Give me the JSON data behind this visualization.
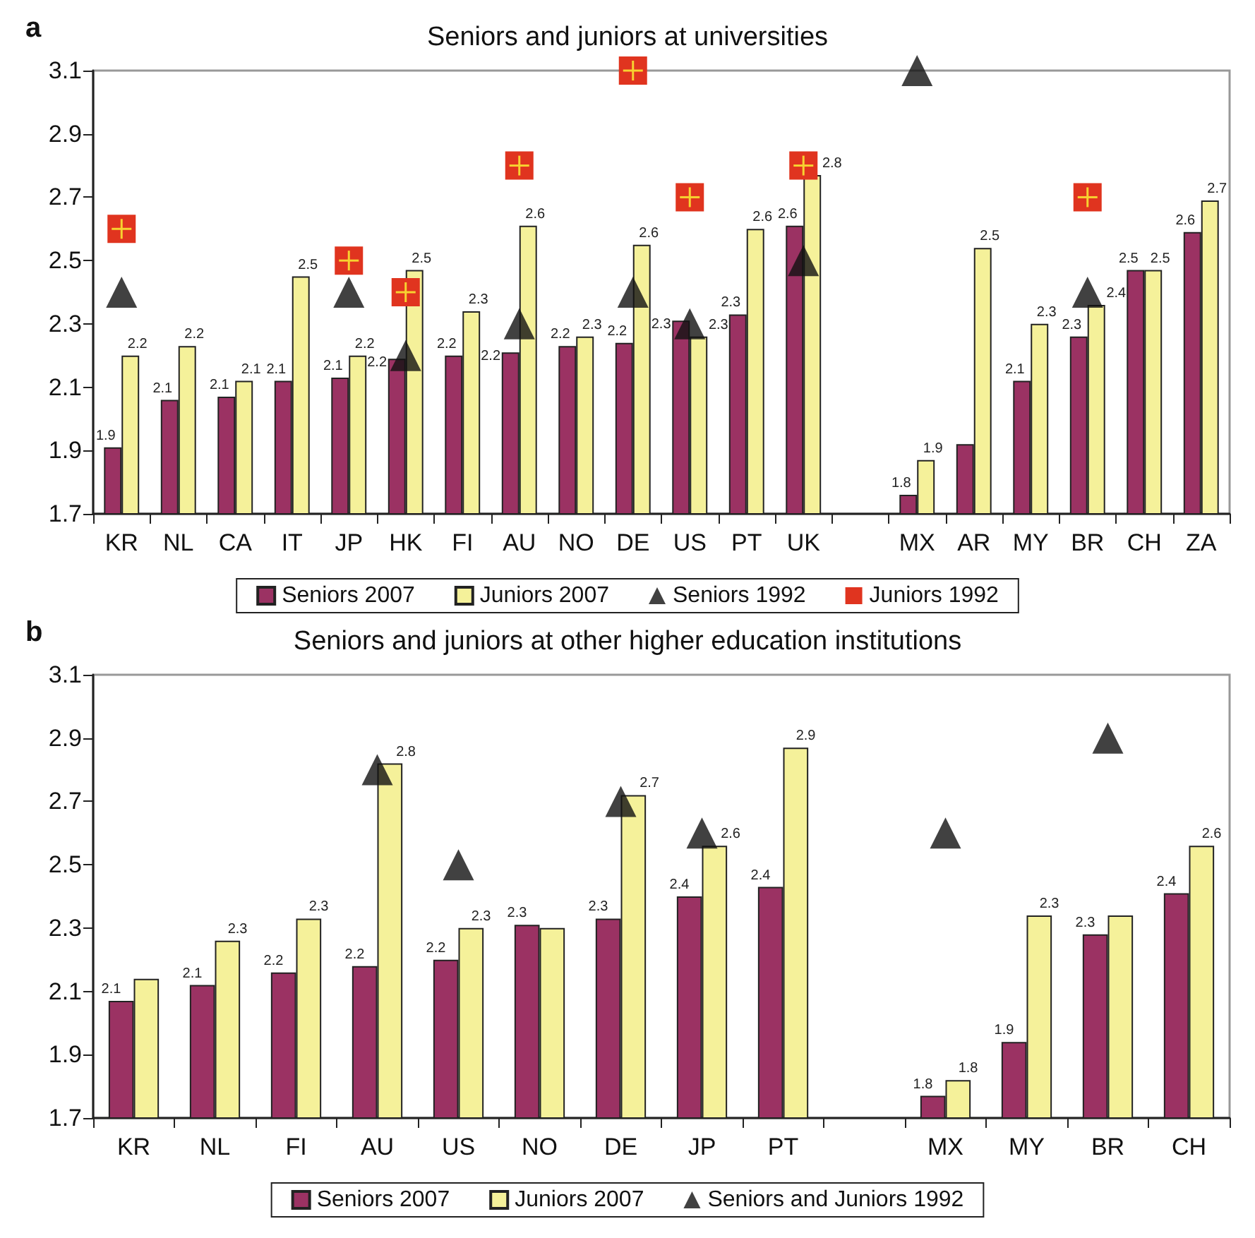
{
  "chart_data": [
    {
      "type": "bar",
      "title": "Seniors and juniors at universities",
      "annotations": [
        "a"
      ],
      "categories": [
        "KR",
        "NL",
        "CA",
        "IT",
        "JP",
        "HK",
        "FI",
        "AU",
        "NO",
        "DE",
        "US",
        "PT",
        "UK",
        null,
        "MX",
        "AR",
        "MY",
        "BR",
        "CH",
        "ZA"
      ],
      "ylim": [
        1.7,
        3.1
      ],
      "yticks": [
        1.7,
        1.9,
        2.1,
        2.3,
        2.5,
        2.7,
        2.9,
        3.1
      ],
      "legend": "bottom",
      "series": [
        {
          "name": "Seniors 2007",
          "color": "#9b3263",
          "values": [
            1.91,
            2.06,
            2.07,
            2.12,
            2.13,
            2.19,
            2.2,
            2.21,
            2.23,
            2.24,
            2.31,
            2.33,
            2.61,
            null,
            1.76,
            1.92,
            2.12,
            2.26,
            2.47,
            2.59
          ],
          "value_labels": [
            "1.9",
            "2.1",
            "2.1",
            "2.1",
            "2.1",
            "2.2",
            "2.2",
            "2.2",
            "2.2",
            "2.2",
            "2.3",
            "2.3",
            "2.6",
            null,
            "1.8",
            null,
            "2.1",
            "2.3",
            "2.5",
            "2.6"
          ]
        },
        {
          "name": "Juniors 2007",
          "color": "#f5f19a",
          "values": [
            2.2,
            2.23,
            2.12,
            2.45,
            2.2,
            2.47,
            2.34,
            2.61,
            2.26,
            2.55,
            2.26,
            2.6,
            2.77,
            null,
            1.87,
            2.54,
            2.3,
            2.36,
            2.47,
            2.69
          ],
          "value_labels": [
            "2.2",
            "2.2",
            "2.1",
            "2.5",
            "2.2",
            "2.5",
            "2.3",
            "2.6",
            "2.3",
            "2.6",
            "2.3",
            "2.6",
            "2.8",
            null,
            "1.9",
            "2.5",
            "2.3",
            "2.4",
            "2.5",
            "2.7"
          ]
        },
        {
          "name": "Seniors 1992",
          "type": "scatter",
          "marker": "triangle",
          "color": "#111111",
          "values": [
            2.4,
            null,
            null,
            null,
            2.4,
            2.2,
            null,
            2.3,
            null,
            2.4,
            2.3,
            null,
            2.5,
            null,
            3.1,
            null,
            null,
            2.4,
            null,
            null
          ]
        },
        {
          "name": "Juniors 1992",
          "type": "scatter",
          "marker": "square",
          "color": "#e0341f",
          "values": [
            2.6,
            null,
            null,
            null,
            2.5,
            2.4,
            null,
            2.8,
            null,
            3.1,
            2.7,
            null,
            2.8,
            null,
            null,
            null,
            null,
            2.7,
            null,
            null
          ]
        }
      ]
    },
    {
      "type": "bar",
      "title": "Seniors and juniors at other higher education institutions",
      "annotations": [
        "b"
      ],
      "categories": [
        "KR",
        "NL",
        "FI",
        "AU",
        "US",
        "NO",
        "DE",
        "JP",
        "PT",
        null,
        "MX",
        "MY",
        "BR",
        "CH"
      ],
      "ylim": [
        1.7,
        3.1
      ],
      "yticks": [
        1.7,
        1.9,
        2.1,
        2.3,
        2.5,
        2.7,
        2.9,
        3.1
      ],
      "legend": "bottom",
      "series": [
        {
          "name": "Seniors 2007",
          "color": "#9b3263",
          "values": [
            2.07,
            2.12,
            2.16,
            2.18,
            2.2,
            2.31,
            2.33,
            2.4,
            2.43,
            null,
            1.77,
            1.94,
            2.28,
            2.41
          ],
          "value_labels": [
            "2.1",
            "2.1",
            "2.2",
            "2.2",
            "2.2",
            "2.3",
            "2.3",
            "2.4",
            "2.4",
            null,
            "1.8",
            "1.9",
            "2.3",
            "2.4"
          ]
        },
        {
          "name": "Juniors 2007",
          "color": "#f5f19a",
          "values": [
            2.14,
            2.26,
            2.33,
            2.82,
            2.3,
            2.3,
            2.72,
            2.56,
            2.87,
            null,
            1.82,
            2.34,
            2.34,
            2.56
          ],
          "value_labels": [
            null,
            "2.3",
            "2.3",
            "2.8",
            "2.3",
            null,
            "2.7",
            "2.6",
            "2.9",
            null,
            "1.8",
            "2.3",
            null,
            "2.6"
          ]
        },
        {
          "name": "Seniors and Juniors 1992",
          "type": "scatter",
          "marker": "triangle",
          "color": "#111111",
          "values": [
            null,
            null,
            null,
            2.8,
            2.5,
            null,
            2.7,
            2.6,
            null,
            null,
            2.6,
            null,
            2.9,
            null
          ]
        }
      ]
    }
  ]
}
